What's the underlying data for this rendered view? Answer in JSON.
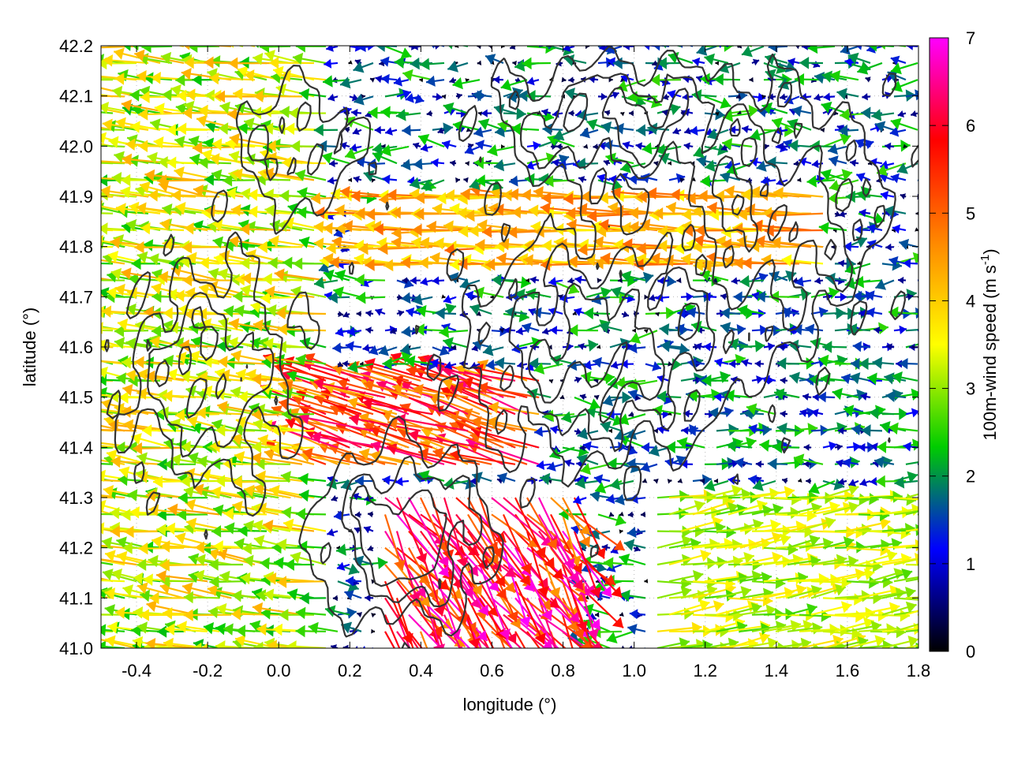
{
  "chart_data": {
    "type": "vector-field",
    "title": "",
    "xlabel": "longitude (°)",
    "ylabel": "latitude (°)",
    "xlim": [
      -0.5,
      1.8
    ],
    "ylim": [
      41.0,
      42.2
    ],
    "xticks": [
      "-0.4",
      "-0.2",
      "0.0",
      "0.2",
      "0.4",
      "0.6",
      "0.8",
      "1.0",
      "1.2",
      "1.4",
      "1.6",
      "1.8"
    ],
    "yticks": [
      "41.0",
      "41.1",
      "41.2",
      "41.3",
      "41.4",
      "41.5",
      "41.6",
      "41.7",
      "41.8",
      "41.9",
      "42.0",
      "42.1",
      "42.2"
    ],
    "colorbar": {
      "label": "100m-wind speed (m s",
      "label_sup": "-1",
      "label_close": ")",
      "range": [
        0,
        7
      ],
      "ticks": [
        "0",
        "1",
        "2",
        "3",
        "4",
        "5",
        "6",
        "7"
      ],
      "colors": [
        "#000000",
        "#0000ff",
        "#00cc00",
        "#ffff00",
        "#ff8800",
        "#ff0000",
        "#ff00ff"
      ]
    },
    "arrow_grid_spacing_deg": {
      "lon": 0.0333,
      "lat": 0.0333
    },
    "dominant_flow": [
      {
        "region": "west (lon < 0.2)",
        "direction": "westward",
        "speed_ms": 3.5
      },
      {
        "region": "center (lat 41.7-41.9)",
        "direction": "westward",
        "speed_ms": 4.5
      },
      {
        "region": "southeast (lon > 1.1, lat < 41.3)",
        "direction": "eastward",
        "speed_ms": 2.8
      },
      {
        "region": "south-center (lon 0.3-0.8, lat < 41.3)",
        "direction": "southeastward",
        "speed_ms": 6.0
      }
    ],
    "contours": "black terrain contour lines",
    "grid": "dotted"
  }
}
